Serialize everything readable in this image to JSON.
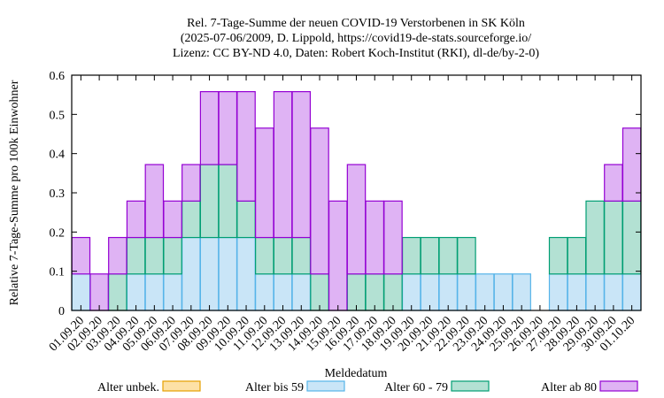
{
  "chart_data": {
    "type": "bar",
    "stacked": true,
    "title": [
      "Rel. 7-Tage-Summe der neuen COVID-19 Verstorbenen in SK Köln",
      "(2025-07-06/2009, D. Lippold, https://covid19-de-stats.sourceforge.io/",
      "Lizenz: CC BY-ND 4.0, Daten: Robert Koch-Institut (RKI), dl-de/by-2-0)"
    ],
    "xlabel": "Meldedatum",
    "ylabel": "Relative 7-Tage-Summe pro 100k Einwohner",
    "ylim": [
      0,
      0.6
    ],
    "yticks": [
      "0",
      "0.1",
      "0.2",
      "0.3",
      "0.4",
      "0.5",
      "0.6"
    ],
    "grid": false,
    "legend_position": "bottom",
    "categories": [
      "01.09.20",
      "02.09.20",
      "03.09.20",
      "04.09.20",
      "05.09.20",
      "06.09.20",
      "07.09.20",
      "08.09.20",
      "09.09.20",
      "10.09.20",
      "11.09.20",
      "12.09.20",
      "13.09.20",
      "14.09.20",
      "15.09.20",
      "16.09.20",
      "17.09.20",
      "18.09.20",
      "19.09.20",
      "20.09.20",
      "21.09.20",
      "22.09.20",
      "23.09.20",
      "24.09.20",
      "25.09.20",
      "26.09.20",
      "27.09.20",
      "28.09.20",
      "29.09.20",
      "30.09.20",
      "01.10.20"
    ],
    "series": [
      {
        "name": "Alter unbek.",
        "fill": "#fde1a6",
        "stroke": "#e69f00",
        "values": [
          0,
          0,
          0,
          0,
          0,
          0,
          0,
          0,
          0,
          0,
          0,
          0,
          0,
          0,
          0,
          0,
          0,
          0,
          0,
          0,
          0,
          0,
          0,
          0,
          0,
          0,
          0,
          0,
          0,
          0,
          0
        ]
      },
      {
        "name": "Alter bis 59",
        "fill": "#c9e5f7",
        "stroke": "#56b4e9",
        "values": [
          0.093,
          0,
          0,
          0.093,
          0.093,
          0.093,
          0.186,
          0.186,
          0.186,
          0.186,
          0.093,
          0.093,
          0.093,
          0,
          0,
          0,
          0,
          0,
          0.093,
          0.093,
          0.093,
          0.093,
          0.093,
          0.093,
          0.093,
          0,
          0.093,
          0.093,
          0.093,
          0.093,
          0.093
        ]
      },
      {
        "name": "Alter 60 - 79",
        "fill": "#b3e1d3",
        "stroke": "#009e73",
        "values": [
          0,
          0,
          0.093,
          0.093,
          0.093,
          0.093,
          0.093,
          0.186,
          0.186,
          0.093,
          0.093,
          0.093,
          0.093,
          0.093,
          0,
          0.093,
          0.093,
          0.093,
          0.093,
          0.093,
          0.093,
          0.093,
          0,
          0,
          0,
          0,
          0.093,
          0.093,
          0.186,
          0.186,
          0.186
        ]
      },
      {
        "name": "Alter ab 80",
        "fill": "#dfb3f4",
        "stroke": "#9400d3",
        "values": [
          0.093,
          0.093,
          0.093,
          0.093,
          0.186,
          0.093,
          0.093,
          0.186,
          0.186,
          0.279,
          0.279,
          0.372,
          0.372,
          0.372,
          0.279,
          0.279,
          0.186,
          0.186,
          0,
          0,
          0,
          0,
          0,
          0,
          0,
          0,
          0,
          0,
          0,
          0.093,
          0.186
        ]
      }
    ]
  }
}
